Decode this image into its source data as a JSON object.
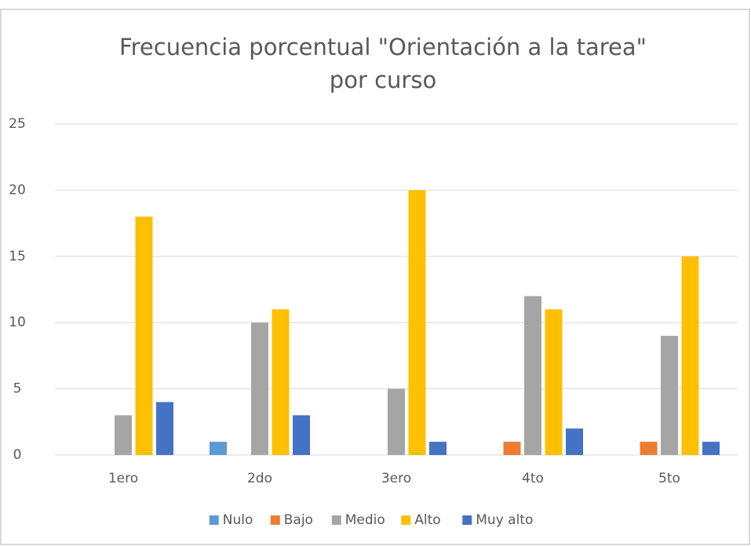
{
  "chart_data": {
    "type": "bar",
    "title": [
      "Frecuencia porcentual \"Orientación a la tarea\"",
      "por curso"
    ],
    "categories": [
      "1ero",
      "2do",
      "3ero",
      "4to",
      "5to"
    ],
    "series": [
      {
        "name": "Nulo",
        "color": "#5b9bd5",
        "values": [
          0,
          1,
          0,
          0,
          0
        ]
      },
      {
        "name": "Bajo",
        "color": "#ed7d31",
        "values": [
          0,
          0,
          0,
          1,
          1
        ]
      },
      {
        "name": "Medio",
        "color": "#a5a5a5",
        "values": [
          3,
          10,
          5,
          12,
          9
        ]
      },
      {
        "name": "Alto",
        "color": "#ffc000",
        "values": [
          18,
          11,
          20,
          11,
          15
        ]
      },
      {
        "name": "Muy alto",
        "color": "#4472c4",
        "values": [
          4,
          3,
          1,
          2,
          1
        ]
      }
    ],
    "ylim": [
      0,
      25
    ],
    "yticks": [
      0,
      5,
      10,
      15,
      20,
      25
    ],
    "grid": true,
    "legend": "bottom"
  }
}
